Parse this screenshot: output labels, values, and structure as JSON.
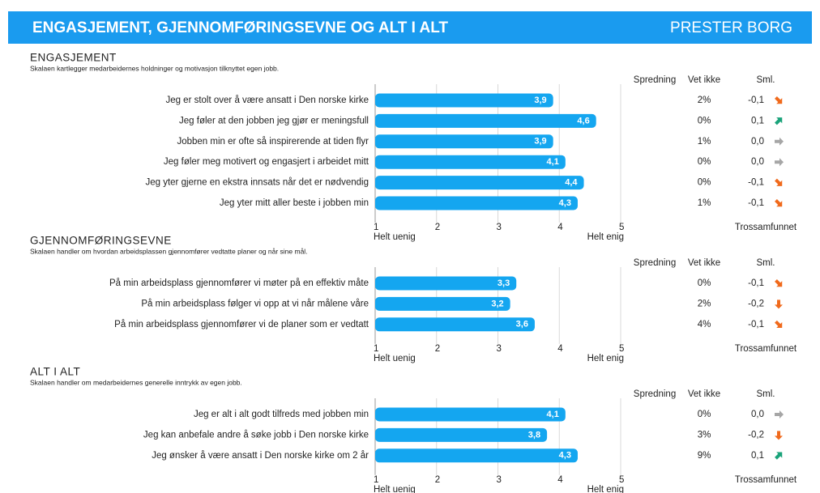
{
  "header": {
    "title": "ENGASJEMENT, GJENNOMFØRINGSEVNE OG ALT I ALT",
    "unit": "PRESTER BORG"
  },
  "chart_data": [
    {
      "type": "bar",
      "title": "ENGASJEMENT",
      "subtitle": "Skalaen kartlegger medarbeidernes holdninger og motivasjon tilknyttet egen jobb.",
      "categories": [
        "Jeg er stolt over å være ansatt i Den norske kirke",
        "Jeg føler at den jobben jeg gjør er meningsfull",
        "Jobben min er ofte så inspirerende at tiden flyr",
        "Jeg føler meg motivert og engasjert i arbeidet mitt",
        "Jeg yter gjerne en ekstra innsats når det er nødvendig",
        "Jeg yter mitt aller beste i jobben min"
      ],
      "values": [
        3.9,
        4.6,
        3.9,
        4.1,
        4.4,
        4.3
      ],
      "value_labels": [
        "3,9",
        "4,6",
        "3,9",
        "4,1",
        "4,4",
        "4,3"
      ],
      "color": "#14a6f0",
      "xlim": [
        1,
        5
      ],
      "xticks": [
        1,
        2,
        3,
        4,
        5
      ],
      "axis_labels": [
        "Helt uenig",
        "Helt enig"
      ],
      "columns": [
        "Spredning",
        "Vet ikke",
        "Sml."
      ],
      "dont_know": [
        2,
        0,
        1,
        0,
        0,
        1
      ],
      "dont_know_labels": [
        "2%",
        "0%",
        "1%",
        "0%",
        "0%",
        "1%"
      ],
      "comparison": [
        -0.1,
        0.1,
        0.0,
        0.0,
        -0.1,
        -0.1
      ],
      "comparison_labels": [
        "-0,1",
        "0,1",
        "0,0",
        "0,0",
        "-0,1",
        "-0,1"
      ],
      "comparison_label": "Trossamfunnet"
    },
    {
      "type": "bar",
      "title": "GJENNOMFØRINGSEVNE",
      "subtitle": "Skalaen handler om hvordan arbeidsplassen gjennomfører vedtatte planer og når sine mål.",
      "categories": [
        "På min arbeidsplass gjennomfører vi møter på en effektiv måte",
        "På min arbeidsplass følger vi opp at vi når målene våre",
        "På min arbeidsplass gjennomfører vi de planer som er vedtatt"
      ],
      "values": [
        3.3,
        3.2,
        3.6
      ],
      "value_labels": [
        "3,3",
        "3,2",
        "3,6"
      ],
      "color": "#14a6f0",
      "xlim": [
        1,
        5
      ],
      "xticks": [
        1,
        2,
        3,
        4,
        5
      ],
      "axis_labels": [
        "Helt uenig",
        "Helt enig"
      ],
      "columns": [
        "Spredning",
        "Vet ikke",
        "Sml."
      ],
      "dont_know": [
        0,
        2,
        4
      ],
      "dont_know_labels": [
        "0%",
        "2%",
        "4%"
      ],
      "comparison": [
        -0.1,
        -0.2,
        -0.1
      ],
      "comparison_labels": [
        "-0,1",
        "-0,2",
        "-0,1"
      ],
      "comparison_label": "Trossamfunnet"
    },
    {
      "type": "bar",
      "title": "ALT I ALT",
      "subtitle": "Skalaen handler om medarbeidernes generelle inntrykk av egen jobb.",
      "categories": [
        "Jeg er alt i alt godt tilfreds med jobben min",
        "Jeg kan anbefale andre å søke jobb i Den norske kirke",
        "Jeg ønsker å være ansatt i Den norske kirke om 2 år"
      ],
      "values": [
        4.1,
        3.8,
        4.3
      ],
      "value_labels": [
        "4,1",
        "3,8",
        "4,3"
      ],
      "color": "#14a6f0",
      "xlim": [
        1,
        5
      ],
      "xticks": [
        1,
        2,
        3,
        4,
        5
      ],
      "axis_labels": [
        "Helt uenig",
        "Helt enig"
      ],
      "columns": [
        "Spredning",
        "Vet ikke",
        "Sml."
      ],
      "dont_know": [
        0,
        3,
        9
      ],
      "dont_know_labels": [
        "0%",
        "3%",
        "9%"
      ],
      "comparison": [
        0.0,
        -0.2,
        0.1
      ],
      "comparison_labels": [
        "0,0",
        "-0,2",
        "0,1"
      ],
      "comparison_label": "Trossamfunnet"
    }
  ]
}
